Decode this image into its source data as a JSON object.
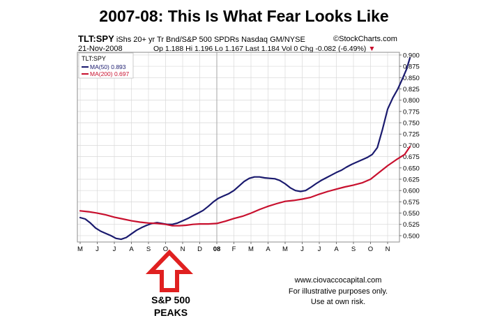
{
  "title": "2007-08:  This Is What Fear Looks Like",
  "header": {
    "symbol": "TLT:SPY",
    "description": "iShs 20+ yr Tr Bnd/S&P 500 SPDRs",
    "exchange": "Nasdaq GM/NYSE",
    "source": "©StockCharts.com",
    "date": "21-Nov-2008",
    "ohlc": "Op 1.188  Hi 1.196  Lo 1.167  Last 1.184  Vol 0  Chg -0.082 (-6.49%)",
    "down_marker": "▼"
  },
  "legend": {
    "symbol": "TLT:SPY",
    "ma50_label": "MA(50) 0.893",
    "ma200_label": "MA(200) 0.697"
  },
  "colors": {
    "ma50": "#1a1a6e",
    "ma200": "#c8102e",
    "arrow": "#e02020",
    "grid": "#d9d9d9"
  },
  "chart_data": {
    "type": "line",
    "x_ticks": [
      "M",
      "J",
      "J",
      "A",
      "S",
      "O",
      "N",
      "D",
      "08",
      "F",
      "M",
      "A",
      "M",
      "J",
      "J",
      "A",
      "S",
      "O",
      "N"
    ],
    "y_ticks": [
      "0.900",
      "0.875",
      "0.850",
      "0.825",
      "0.800",
      "0.775",
      "0.750",
      "0.725",
      "0.700",
      "0.675",
      "0.650",
      "0.625",
      "0.600",
      "0.575",
      "0.550",
      "0.525",
      "0.500"
    ],
    "ylim": [
      0.486,
      0.906
    ],
    "series": [
      {
        "name": "MA(50) 0.893",
        "color": "#1a1a6e",
        "points": [
          [
            0.0,
            0.54
          ],
          [
            0.3,
            0.537
          ],
          [
            0.6,
            0.528
          ],
          [
            0.9,
            0.517
          ],
          [
            1.2,
            0.51
          ],
          [
            1.5,
            0.505
          ],
          [
            1.8,
            0.5
          ],
          [
            2.1,
            0.494
          ],
          [
            2.4,
            0.492
          ],
          [
            2.7,
            0.496
          ],
          [
            3.0,
            0.504
          ],
          [
            3.3,
            0.512
          ],
          [
            3.6,
            0.518
          ],
          [
            3.9,
            0.523
          ],
          [
            4.2,
            0.527
          ],
          [
            4.5,
            0.529
          ],
          [
            4.8,
            0.527
          ],
          [
            5.1,
            0.525
          ],
          [
            5.4,
            0.525
          ],
          [
            5.7,
            0.528
          ],
          [
            6.0,
            0.533
          ],
          [
            6.3,
            0.538
          ],
          [
            6.6,
            0.544
          ],
          [
            6.9,
            0.55
          ],
          [
            7.2,
            0.556
          ],
          [
            7.5,
            0.565
          ],
          [
            7.8,
            0.575
          ],
          [
            8.1,
            0.583
          ],
          [
            8.4,
            0.588
          ],
          [
            8.7,
            0.593
          ],
          [
            9.0,
            0.6
          ],
          [
            9.3,
            0.61
          ],
          [
            9.6,
            0.62
          ],
          [
            9.9,
            0.627
          ],
          [
            10.2,
            0.63
          ],
          [
            10.5,
            0.63
          ],
          [
            10.8,
            0.628
          ],
          [
            11.1,
            0.627
          ],
          [
            11.4,
            0.626
          ],
          [
            11.7,
            0.622
          ],
          [
            12.0,
            0.615
          ],
          [
            12.3,
            0.606
          ],
          [
            12.6,
            0.6
          ],
          [
            12.9,
            0.598
          ],
          [
            13.2,
            0.6
          ],
          [
            13.5,
            0.607
          ],
          [
            13.8,
            0.615
          ],
          [
            14.1,
            0.622
          ],
          [
            14.4,
            0.628
          ],
          [
            14.7,
            0.634
          ],
          [
            15.0,
            0.64
          ],
          [
            15.3,
            0.645
          ],
          [
            15.6,
            0.652
          ],
          [
            15.9,
            0.658
          ],
          [
            16.2,
            0.663
          ],
          [
            16.5,
            0.668
          ],
          [
            16.8,
            0.673
          ],
          [
            17.1,
            0.68
          ],
          [
            17.4,
            0.695
          ],
          [
            17.7,
            0.735
          ],
          [
            18.0,
            0.78
          ],
          [
            18.3,
            0.805
          ],
          [
            18.6,
            0.825
          ],
          [
            18.9,
            0.85
          ],
          [
            19.1,
            0.868
          ],
          [
            19.3,
            0.893
          ]
        ]
      },
      {
        "name": "MA(200) 0.697",
        "color": "#c8102e",
        "points": [
          [
            0.0,
            0.555
          ],
          [
            0.5,
            0.553
          ],
          [
            1.0,
            0.55
          ],
          [
            1.5,
            0.546
          ],
          [
            2.0,
            0.541
          ],
          [
            2.5,
            0.537
          ],
          [
            3.0,
            0.533
          ],
          [
            3.5,
            0.53
          ],
          [
            4.0,
            0.528
          ],
          [
            4.5,
            0.527
          ],
          [
            5.0,
            0.525
          ],
          [
            5.4,
            0.522
          ],
          [
            5.8,
            0.522
          ],
          [
            6.2,
            0.523
          ],
          [
            6.6,
            0.525
          ],
          [
            7.0,
            0.526
          ],
          [
            7.5,
            0.526
          ],
          [
            8.0,
            0.527
          ],
          [
            8.5,
            0.532
          ],
          [
            9.0,
            0.538
          ],
          [
            9.5,
            0.543
          ],
          [
            10.0,
            0.55
          ],
          [
            10.5,
            0.558
          ],
          [
            11.0,
            0.565
          ],
          [
            11.5,
            0.571
          ],
          [
            12.0,
            0.576
          ],
          [
            12.5,
            0.578
          ],
          [
            13.0,
            0.581
          ],
          [
            13.5,
            0.585
          ],
          [
            14.0,
            0.592
          ],
          [
            14.5,
            0.598
          ],
          [
            15.0,
            0.603
          ],
          [
            15.5,
            0.608
          ],
          [
            16.0,
            0.612
          ],
          [
            16.5,
            0.617
          ],
          [
            17.0,
            0.625
          ],
          [
            17.5,
            0.64
          ],
          [
            18.0,
            0.655
          ],
          [
            18.5,
            0.668
          ],
          [
            19.0,
            0.68
          ],
          [
            19.3,
            0.697
          ]
        ]
      }
    ]
  },
  "annotation": {
    "line1": "S&P 500",
    "line2": "PEAKS"
  },
  "footer": {
    "url": "www.ciovaccocapital.com",
    "line1": "For illustrative purposes only.",
    "line2": "Use at own risk."
  }
}
